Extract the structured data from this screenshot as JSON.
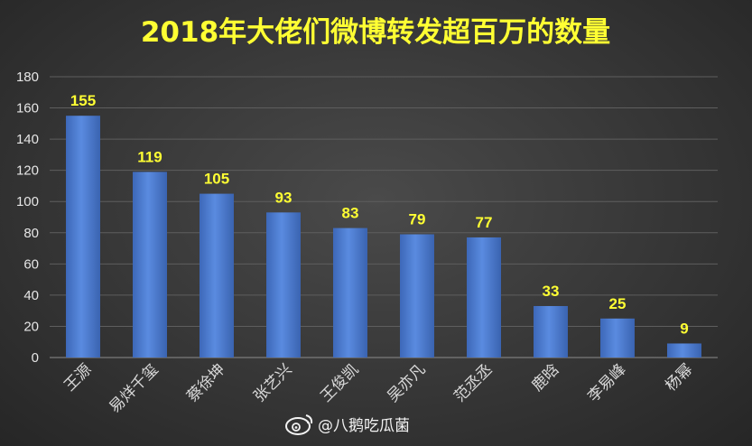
{
  "chart_data": {
    "type": "bar",
    "title": "2018年大佬们微博转发超百万的数量",
    "categories": [
      "王源",
      "易烊千玺",
      "蔡徐坤",
      "张艺兴",
      "王俊凯",
      "吴亦凡",
      "范丞丞",
      "鹿晗",
      "李易峰",
      "杨幂"
    ],
    "values": [
      155,
      119,
      105,
      93,
      83,
      79,
      77,
      33,
      25,
      9
    ],
    "ylim": [
      0,
      180
    ],
    "yticks": [
      0,
      20,
      40,
      60,
      80,
      100,
      120,
      140,
      160,
      180
    ],
    "grid": true,
    "bar_color": "#4a78cc",
    "label_color": "#ffff33"
  },
  "watermark": {
    "icon": "weibo-icon",
    "text": "@八鹅吃瓜菌"
  }
}
